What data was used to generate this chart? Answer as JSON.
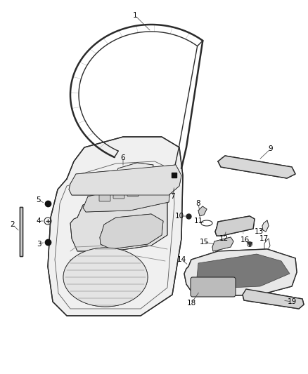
{
  "bg_color": "#ffffff",
  "line_color": "#2a2a2a",
  "label_color": "#000000",
  "lw_main": 1.0,
  "lw_thin": 0.6,
  "lw_thick": 1.8,
  "label_fs": 7.5
}
